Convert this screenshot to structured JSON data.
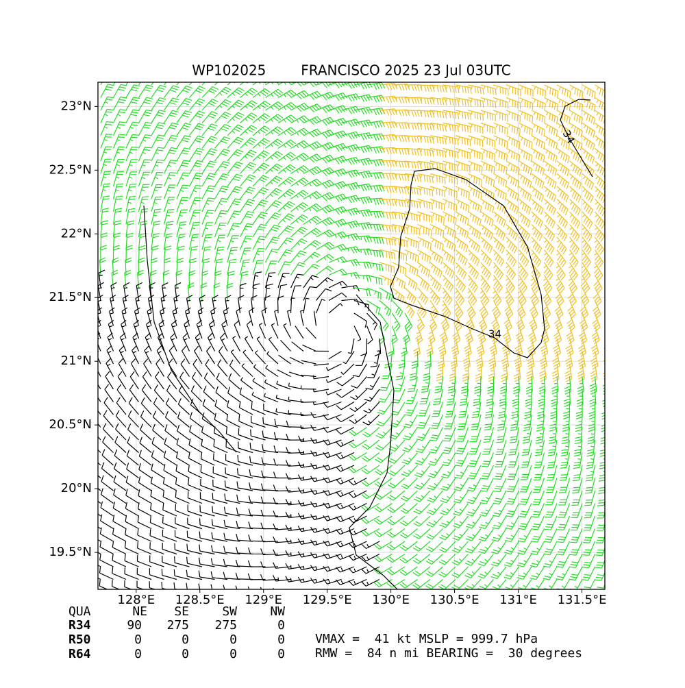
{
  "chart_data": {
    "type": "barbs",
    "title": "WP102025        FRANCISCO 2025 23 Jul 03UTC",
    "xlim": [
      127.7,
      131.68
    ],
    "ylim": [
      19.21,
      23.19
    ],
    "xticks": [
      {
        "value": 128,
        "label": "128°E"
      },
      {
        "value": 128.5,
        "label": "128.5°E"
      },
      {
        "value": 129,
        "label": "129°E"
      },
      {
        "value": 129.5,
        "label": "129.5°E"
      },
      {
        "value": 130,
        "label": "130°E"
      },
      {
        "value": 130.5,
        "label": "130.5°E"
      },
      {
        "value": 131,
        "label": "131°E"
      },
      {
        "value": 131.5,
        "label": "131.5°E"
      }
    ],
    "yticks": [
      {
        "value": 19.5,
        "label": "19.5°N"
      },
      {
        "value": 20,
        "label": "20°N"
      },
      {
        "value": 20.5,
        "label": "20.5°N"
      },
      {
        "value": 21,
        "label": "21°N"
      },
      {
        "value": 21.5,
        "label": "21.5°N"
      },
      {
        "value": 22,
        "label": "22°N"
      },
      {
        "value": 22.5,
        "label": "22.5°N"
      },
      {
        "value": 23,
        "label": "23°N"
      }
    ],
    "grid": true,
    "contour_labels": [
      "34",
      "34"
    ],
    "table": {
      "header": [
        "QUA",
        "NE",
        "SE",
        "SW",
        "NW"
      ],
      "rows": [
        {
          "label": "R34",
          "values": [
            90,
            275,
            275,
            0
          ]
        },
        {
          "label": "R50",
          "values": [
            0,
            0,
            0,
            0
          ]
        },
        {
          "label": "R64",
          "values": [
            0,
            0,
            0,
            0
          ]
        }
      ]
    },
    "notes": [
      "VMAX =  41 kt MSLP = 999.7 hPa",
      "RMW =  84 n mi BEARING =  30 degrees"
    ]
  }
}
